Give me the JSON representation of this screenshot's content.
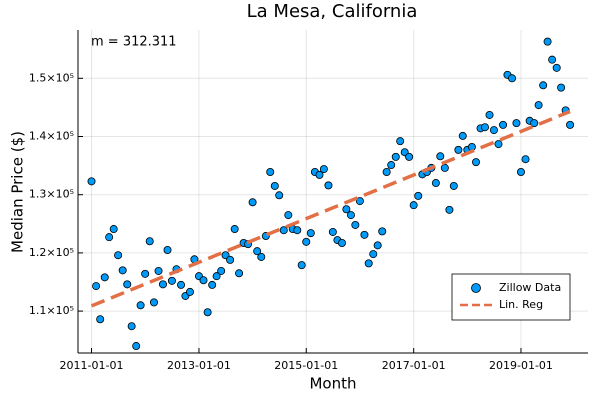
{
  "chart_data": {
    "type": "scatter",
    "title": "La Mesa, California",
    "x_label": "Month",
    "y_label": "Median Price ($)",
    "annotation": "m = 312.311",
    "xlim": [
      "2010-10-01",
      "2020-04-01"
    ],
    "xticks": [
      "2011-01-01",
      "2013-01-01",
      "2015-01-01",
      "2017-01-01",
      "2019-01-01"
    ],
    "ylim": [
      102800,
      158300
    ],
    "yticks": [
      {
        "value": 110000,
        "label": "1.1×10⁵"
      },
      {
        "value": 120000,
        "label": "1.2×10⁵"
      },
      {
        "value": 130000,
        "label": "1.3×10⁵"
      },
      {
        "value": 140000,
        "label": "1.4×10⁵"
      },
      {
        "value": 150000,
        "label": "1.5×10⁵"
      }
    ],
    "grid": true,
    "legend": "bottom right",
    "series": [
      {
        "name": "Zillow Data",
        "type": "scatter",
        "color": "#009af9",
        "x": [
          "2011-01-01",
          "2011-02-01",
          "2011-03-01",
          "2011-04-01",
          "2011-05-01",
          "2011-06-01",
          "2011-07-01",
          "2011-08-01",
          "2011-09-01",
          "2011-10-01",
          "2011-11-01",
          "2011-12-01",
          "2012-01-01",
          "2012-02-01",
          "2012-03-01",
          "2012-04-01",
          "2012-05-01",
          "2012-06-01",
          "2012-07-01",
          "2012-08-01",
          "2012-09-01",
          "2012-10-01",
          "2012-11-01",
          "2012-12-01",
          "2013-01-01",
          "2013-02-01",
          "2013-03-01",
          "2013-04-01",
          "2013-05-01",
          "2013-06-01",
          "2013-07-01",
          "2013-08-01",
          "2013-09-01",
          "2013-10-01",
          "2013-11-01",
          "2013-12-01",
          "2014-01-01",
          "2014-02-01",
          "2014-03-01",
          "2014-04-01",
          "2014-05-01",
          "2014-06-01",
          "2014-07-01",
          "2014-08-01",
          "2014-09-01",
          "2014-10-01",
          "2014-11-01",
          "2014-12-01",
          "2015-01-01",
          "2015-02-01",
          "2015-03-01",
          "2015-04-01",
          "2015-05-01",
          "2015-06-01",
          "2015-07-01",
          "2015-08-01",
          "2015-09-01",
          "2015-10-01",
          "2015-11-01",
          "2015-12-01",
          "2016-01-01",
          "2016-02-01",
          "2016-03-01",
          "2016-04-01",
          "2016-05-01",
          "2016-06-01",
          "2016-07-01",
          "2016-08-01",
          "2016-09-01",
          "2016-10-01",
          "2016-11-01",
          "2016-12-01",
          "2017-01-01",
          "2017-02-01",
          "2017-03-01",
          "2017-04-01",
          "2017-05-01",
          "2017-06-01",
          "2017-07-01",
          "2017-08-01",
          "2017-09-01",
          "2017-10-01",
          "2017-11-01",
          "2017-12-01",
          "2018-01-01",
          "2018-02-01",
          "2018-03-01",
          "2018-04-01",
          "2018-05-01",
          "2018-06-01",
          "2018-07-01",
          "2018-08-01",
          "2018-09-01",
          "2018-10-01",
          "2018-11-01",
          "2018-12-01",
          "2019-01-01",
          "2019-02-01",
          "2019-03-01",
          "2019-04-01",
          "2019-05-01",
          "2019-06-01",
          "2019-07-01",
          "2019-08-01",
          "2019-09-01",
          "2019-10-01",
          "2019-11-01",
          "2019-12-01"
        ],
        "values": [
          132300,
          114300,
          108600,
          115800,
          122700,
          124100,
          119600,
          117000,
          114600,
          107400,
          104000,
          111000,
          116400,
          122000,
          111500,
          116900,
          114600,
          120500,
          115200,
          117200,
          114500,
          112600,
          113300,
          118900,
          116000,
          115300,
          109800,
          114500,
          116000,
          116900,
          119600,
          118800,
          124100,
          116500,
          121700,
          121500,
          128700,
          120300,
          119300,
          122900,
          133900,
          131500,
          129900,
          123900,
          126500,
          124100,
          123900,
          117900,
          121900,
          123400,
          133900,
          133400,
          134400,
          131600,
          123600,
          122200,
          121700,
          127500,
          126500,
          124800,
          128900,
          123100,
          118200,
          119800,
          121300,
          123700,
          133900,
          135100,
          136500,
          139200,
          137300,
          136500,
          128200,
          129800,
          133500,
          133900,
          134600,
          132000,
          136600,
          134600,
          127400,
          131500,
          137700,
          140100,
          137700,
          138200,
          135600,
          141400,
          141600,
          143700,
          141100,
          138700,
          142000,
          150600,
          150000,
          142300,
          133900,
          136100,
          142700,
          142300,
          145400,
          148800,
          156300,
          153200,
          151800,
          148400,
          144500,
          142000
        ]
      },
      {
        "name": "Lin. Reg",
        "type": "line",
        "color": "#e26f46",
        "x": [
          "2011-01-01",
          "2019-12-01"
        ],
        "values": [
          110900,
          144300
        ]
      }
    ]
  }
}
